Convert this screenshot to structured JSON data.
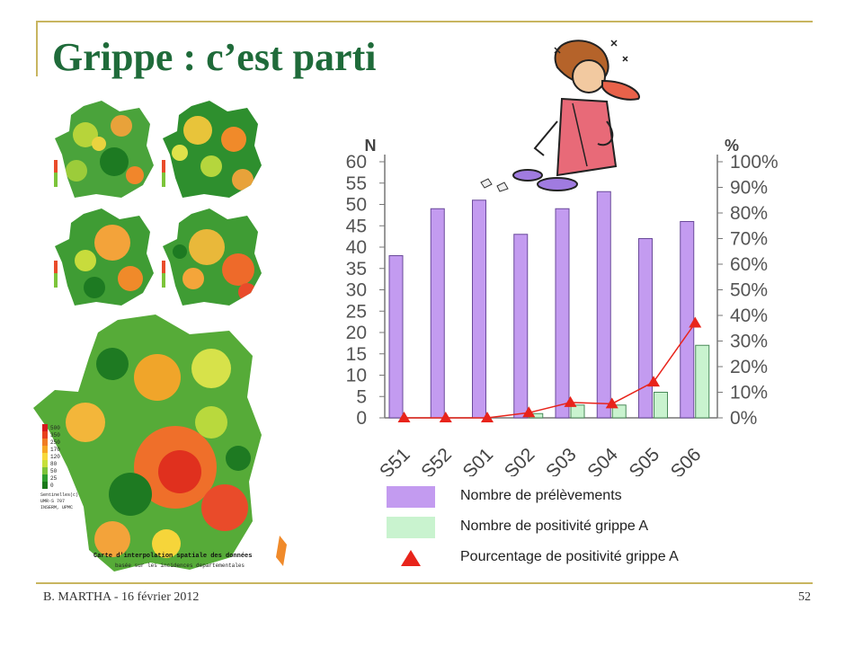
{
  "slide": {
    "title": "Grippe : c’est parti",
    "footer_left": "B. MARTHA - 16 février 2012",
    "page_number": "52"
  },
  "maps": {
    "caption": "Carte d'interpolation spatiale des données",
    "caption_sub": "basée sur les incidences departementales",
    "source": "Sentinelles(c)\nUMR-S 707\nINSERM, UPMC",
    "scale_values": [
      "500",
      "350",
      "250",
      "170",
      "120",
      "80",
      "50",
      "25",
      "0"
    ],
    "scale_colors": [
      "#d7191c",
      "#e8401c",
      "#f07c22",
      "#f6a623",
      "#f7d83a",
      "#c6e03a",
      "#7cc43a",
      "#2e9e2e",
      "#1a7a1a"
    ]
  },
  "chart_data": {
    "type": "bar",
    "categories": [
      "S51",
      "S52",
      "S01",
      "S02",
      "S03",
      "S04",
      "S05",
      "S06"
    ],
    "series": [
      {
        "name": "Nombre de prélèvements",
        "kind": "bar",
        "axis": "left",
        "color": "#c39bf0",
        "values": [
          38,
          49,
          51,
          43,
          49,
          53,
          42,
          46
        ]
      },
      {
        "name": "Nombre de positivité grippe A",
        "kind": "bar",
        "axis": "left",
        "color": "#c9f3cf",
        "values": [
          0,
          0,
          0,
          1,
          3,
          3,
          6,
          17
        ]
      },
      {
        "name": "Pourcentage de positivité grippe A",
        "kind": "line",
        "axis": "right",
        "color": "#e8241b",
        "values": [
          0,
          0,
          0,
          2,
          6,
          5.5,
          14,
          37
        ]
      }
    ],
    "left_axis": {
      "label": "N",
      "min": 0,
      "max": 60,
      "ticks": [
        0,
        5,
        10,
        15,
        20,
        25,
        30,
        35,
        40,
        45,
        50,
        55,
        60
      ]
    },
    "right_axis": {
      "label": "%",
      "min": 0,
      "max": 100,
      "ticks": [
        "0%",
        "10%",
        "20%",
        "30%",
        "40%",
        "50%",
        "60%",
        "70%",
        "80%",
        "90%",
        "100%"
      ]
    },
    "legend_position": "bottom"
  }
}
